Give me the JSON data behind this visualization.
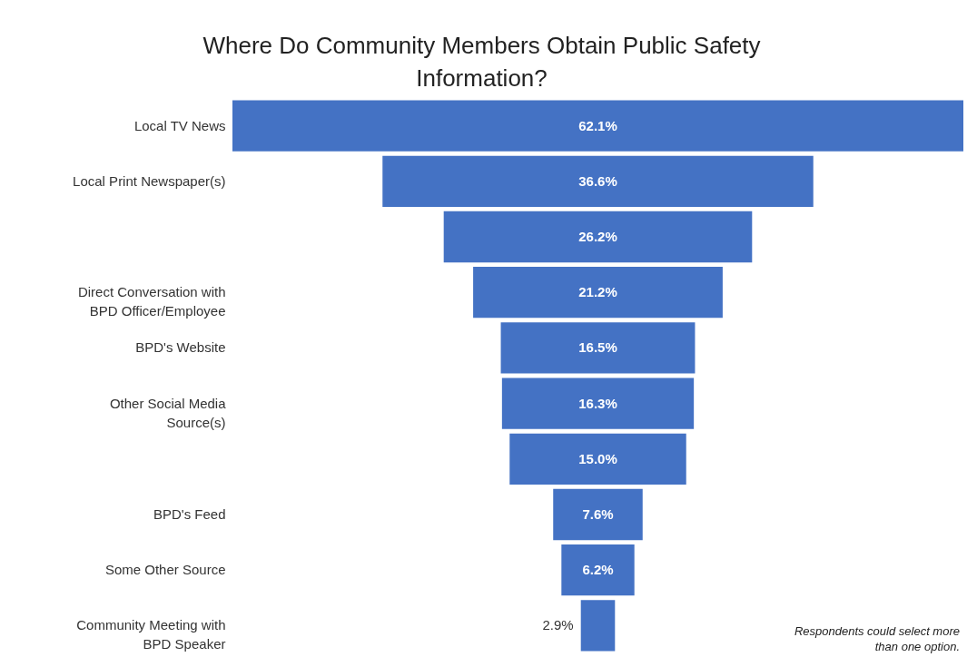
{
  "chart_data": {
    "type": "other",
    "title": "Where Do Community Members Obtain Public Safety Information?",
    "categories": [
      "Local TV News",
      "Local Print Newspaper(s)",
      null,
      "Direct Conversation with BPD Officer/Employee",
      "BPD's Website",
      "Other Social Media Source(s)",
      null,
      "BPD's Feed",
      "Some Other Source",
      "Community Meeting with BPD Speaker"
    ],
    "values": [
      62.1,
      36.6,
      26.2,
      21.2,
      16.5,
      16.3,
      15.0,
      7.6,
      6.2,
      2.9
    ],
    "value_labels": [
      "62.1%",
      "36.6%",
      "26.2%",
      "21.2%",
      "16.5%",
      "16.3%",
      "15.0%",
      "7.6%",
      "6.2%",
      "2.9%"
    ],
    "color": "#4472c4",
    "annotations": [
      "Respondents could select more than one option."
    ]
  }
}
